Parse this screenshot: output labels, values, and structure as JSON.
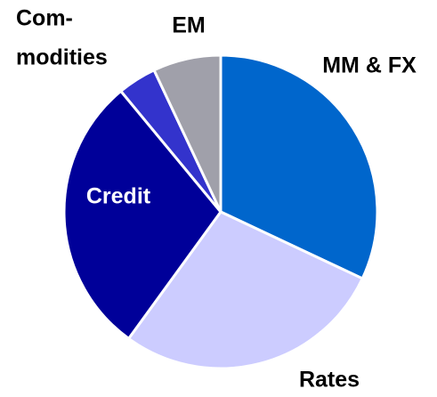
{
  "chart_data": {
    "type": "pie",
    "categories": [
      "MM & FX",
      "Rates",
      "Credit",
      [
        "Com-",
        "modities"
      ],
      "EM"
    ],
    "values": [
      32,
      28,
      29,
      4,
      7
    ],
    "colors": [
      "#0066cc",
      "#ccccff",
      "#000099",
      "#3333cc",
      "#a0a0aa"
    ]
  }
}
